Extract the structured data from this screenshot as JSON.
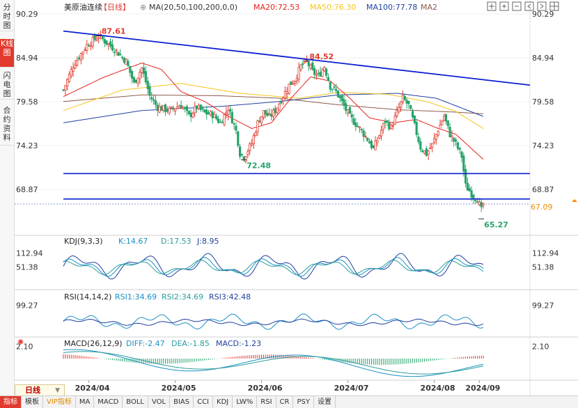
{
  "side_tabs": [
    "分时图",
    "K线图",
    "闪电图",
    "合约资料"
  ],
  "bottom_tabs": [
    "指标",
    "模板",
    "VIP指标",
    "MA",
    "MACD",
    "BOLL",
    "VOL",
    "BIAS",
    "CCI",
    "KDJ",
    "LW%",
    "RSI",
    "CR",
    "PSY",
    "设置"
  ],
  "period_label": "日线",
  "main_header": {
    "name": "美原油连续",
    "period": "【日线】",
    "circle_icon": "⊕",
    "ma_label": "MA(20,50,100,200,0,0)",
    "ma20": "MA20:72.53",
    "ma50": "MA50:76.30",
    "ma100": "MA100:77.78",
    "ma2": "MA2"
  },
  "kdj_header": {
    "title": "KDJ(9,3,3)",
    "k": "K:14.67",
    "d": "D:17.53",
    "j": "J:8.95"
  },
  "rsi_header": {
    "title": "RSI(14,14,2)",
    "rsi1": "RSI1:34.69",
    "rsi2": "RSI2:34.69",
    "rsi3": "RSI3:42.48"
  },
  "macd_header": {
    "title": "MACD(26,12,9)",
    "diff": "DIFF:-2.47",
    "dea": "DEA:-1.85",
    "macd": "MACD:-1.23"
  },
  "colors": {
    "up": "#e23a2e",
    "down": "#27a36a",
    "ma20": "#e3241b",
    "ma50": "#f5c518",
    "ma100": "#1f3f9e",
    "ma200": "#8b5a4a",
    "trend": "#0b1fd1",
    "current_price": "#f08c00"
  },
  "chart_data": {
    "type": "candlestick",
    "price_axis_ticks": [
      90.29,
      84.94,
      79.58,
      74.23,
      68.87
    ],
    "kdj_axis_ticks": [
      112.94,
      51.38
    ],
    "rsi_axis_ticks": [
      99.27
    ],
    "macd_axis_ticks": [
      2.1
    ],
    "date_labels": [
      "2024/04",
      "2024/05",
      "2024/06",
      "2024/07",
      "2024/08",
      "2024/09"
    ],
    "annotations": [
      {
        "label": "87.61",
        "kind": "high"
      },
      {
        "label": "84.52",
        "kind": "high"
      },
      {
        "label": "72.48",
        "kind": "low"
      },
      {
        "label": "65.27",
        "kind": "low"
      }
    ],
    "current_price": "67.09",
    "horizontal_levels": [
      70.8,
      67.7
    ],
    "trendline": {
      "from": {
        "date": "2024/03/18",
        "price": 88.2
      },
      "to": {
        "date": "2024/09/10",
        "price": 81.6
      }
    },
    "close_path": [
      [
        0,
        81.0
      ],
      [
        5,
        84.0
      ],
      [
        12,
        86.5
      ],
      [
        18,
        87.6
      ],
      [
        26,
        86.0
      ],
      [
        32,
        84.5
      ],
      [
        36,
        81.8
      ],
      [
        40,
        83.7
      ],
      [
        44,
        80.3
      ],
      [
        48,
        78.9
      ],
      [
        54,
        78.5
      ],
      [
        60,
        79.2
      ],
      [
        64,
        77.8
      ],
      [
        68,
        78.9
      ],
      [
        72,
        78.2
      ],
      [
        76,
        78.0
      ],
      [
        80,
        77.0
      ],
      [
        84,
        78.8
      ],
      [
        88,
        76.0
      ],
      [
        90,
        73.3
      ],
      [
        92,
        72.8
      ],
      [
        96,
        74.5
      ],
      [
        99,
        77.0
      ],
      [
        102,
        78.3
      ],
      [
        105,
        77.7
      ],
      [
        108,
        78.5
      ],
      [
        112,
        80.3
      ],
      [
        115,
        81.6
      ],
      [
        118,
        82.3
      ],
      [
        121,
        83.9
      ],
      [
        124,
        84.5
      ],
      [
        127,
        83.2
      ],
      [
        130,
        82.7
      ],
      [
        133,
        83.9
      ],
      [
        136,
        81.5
      ],
      [
        139,
        80.8
      ],
      [
        142,
        79.5
      ],
      [
        146,
        77.7
      ],
      [
        149,
        76.9
      ],
      [
        152,
        76.0
      ],
      [
        155,
        75.0
      ],
      [
        158,
        73.8
      ],
      [
        161,
        75.5
      ],
      [
        164,
        77.2
      ],
      [
        167,
        76.4
      ],
      [
        170,
        78.2
      ],
      [
        173,
        80.0
      ],
      [
        176,
        79.1
      ],
      [
        179,
        76.6
      ],
      [
        182,
        74.0
      ],
      [
        185,
        73.2
      ],
      [
        188,
        74.3
      ],
      [
        191,
        76.2
      ],
      [
        194,
        77.8
      ],
      [
        197,
        75.6
      ],
      [
        200,
        74.4
      ],
      [
        203,
        72.9
      ],
      [
        205,
        69.3
      ],
      [
        207,
        68.7
      ],
      [
        209,
        68.0
      ],
      [
        211,
        67.7
      ],
      [
        213,
        66.3
      ],
      [
        214,
        67.09
      ]
    ],
    "ma20_path": [
      [
        0,
        80.2
      ],
      [
        20,
        82.5
      ],
      [
        40,
        84.3
      ],
      [
        50,
        83.5
      ],
      [
        60,
        80.8
      ],
      [
        72,
        79.6
      ],
      [
        84,
        77.8
      ],
      [
        96,
        76.3
      ],
      [
        106,
        77.0
      ],
      [
        116,
        80.0
      ],
      [
        126,
        82.6
      ],
      [
        136,
        82.1
      ],
      [
        146,
        80.0
      ],
      [
        156,
        77.6
      ],
      [
        168,
        77.0
      ],
      [
        180,
        77.4
      ],
      [
        190,
        76.4
      ],
      [
        200,
        75.6
      ],
      [
        214,
        72.53
      ]
    ],
    "ma50_path": [
      [
        0,
        78.5
      ],
      [
        30,
        81.0
      ],
      [
        60,
        81.8
      ],
      [
        90,
        80.6
      ],
      [
        120,
        80.0
      ],
      [
        140,
        80.7
      ],
      [
        165,
        80.5
      ],
      [
        185,
        79.6
      ],
      [
        200,
        78.4
      ],
      [
        214,
        76.3
      ]
    ],
    "ma100_path": [
      [
        0,
        77.0
      ],
      [
        40,
        78.5
      ],
      [
        80,
        79.0
      ],
      [
        110,
        79.6
      ],
      [
        140,
        80.4
      ],
      [
        170,
        80.6
      ],
      [
        190,
        80.0
      ],
      [
        214,
        77.78
      ]
    ],
    "ma200_path": [
      [
        0,
        79.6
      ],
      [
        40,
        80.4
      ],
      [
        80,
        80.3
      ],
      [
        110,
        80.0
      ],
      [
        140,
        79.2
      ],
      [
        170,
        78.6
      ],
      [
        200,
        78.3
      ],
      [
        214,
        78.1
      ]
    ]
  }
}
